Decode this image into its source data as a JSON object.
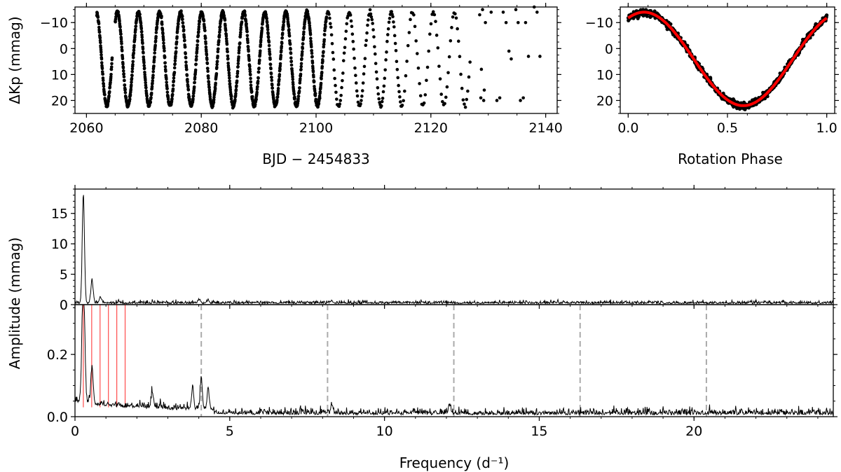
{
  "chart_data": [
    {
      "type": "scatter",
      "panel": "light-curve",
      "xlabel": "BJD − 2454833",
      "ylabel": "ΔKp (mmag)",
      "xlim": [
        2058,
        2142
      ],
      "ylim": [
        25,
        -16
      ],
      "y_inverted": true,
      "xticks": [
        2060,
        2080,
        2100,
        2120,
        2140
      ],
      "xtick_labels": [
        "2060",
        "2080",
        "2100",
        "2120",
        "2140"
      ],
      "yticks": [
        -10,
        0,
        10,
        20
      ],
      "ytick_labels": [
        "−10",
        "0",
        "10",
        "20"
      ],
      "series": [
        {
          "color": "#000000",
          "model": {
            "period_days": 3.67,
            "min_time": 2063.55,
            "amplitude_mmag": 18,
            "offset_mmag": 4,
            "time_range": [
              2061.8,
              2139.0
            ],
            "gap": [
              2064.5,
              2065.0
            ],
            "dense_until": 2101.8,
            "sparse_after": 2127.0,
            "sparse_points": [
              [
                2128.5,
                -13
              ],
              [
                2129.0,
                -15
              ],
              [
                2129.5,
                -10
              ],
              [
                2128.8,
                8
              ],
              [
                2129.3,
                16
              ],
              [
                2128.7,
                19
              ],
              [
                2129.2,
                20
              ],
              [
                2131.5,
                20
              ],
              [
                2132.0,
                19
              ],
              [
                2132.6,
                -14
              ],
              [
                2133.1,
                -10
              ],
              [
                2133.6,
                1
              ],
              [
                2134.0,
                4
              ],
              [
                2134.8,
                -15
              ],
              [
                2135.2,
                -10
              ],
              [
                2135.6,
                20
              ],
              [
                2136.1,
                19
              ],
              [
                2136.5,
                -10
              ],
              [
                2137.0,
                3
              ],
              [
                2138.0,
                -16
              ],
              [
                2138.5,
                -14
              ],
              [
                2139.0,
                3
              ],
              [
                2130.5,
                -14
              ]
            ]
          }
        }
      ]
    },
    {
      "type": "scatter",
      "panel": "phased",
      "xlabel": "Rotation Phase",
      "ylabel": "",
      "xlim": [
        -0.04,
        1.04
      ],
      "ylim": [
        25,
        -16
      ],
      "y_inverted": true,
      "xticks": [
        0.0,
        0.5,
        1.0
      ],
      "xtick_labels": [
        "0.0",
        "0.5",
        "1.0"
      ],
      "yticks": [
        -10,
        0,
        10,
        20
      ],
      "ytick_labels": [
        "−10",
        "0",
        "10",
        "20"
      ],
      "series": [
        {
          "style": "points",
          "color": "#000000",
          "phase_of_minimum": 0.58,
          "min_mmag": 22,
          "max_mmag": -14
        },
        {
          "style": "line",
          "color": "#ff0000",
          "phase_of_minimum": 0.58,
          "min_mmag": 22,
          "max_mmag": -14
        }
      ]
    },
    {
      "type": "line",
      "panel": "amplitude-spectrum",
      "xlabel": "",
      "ylabel": "Amplitude (mmag)",
      "xlim": [
        0,
        24.5
      ],
      "ylim": [
        0,
        19
      ],
      "xticks": [
        0,
        5,
        10,
        15,
        20
      ],
      "yticks": [
        0,
        5,
        10,
        15
      ],
      "ytick_labels": [
        "0",
        "5",
        "10",
        "15"
      ],
      "series": [
        {
          "color": "#000000",
          "peaks": [
            [
              0.27,
              18.0
            ],
            [
              0.55,
              3.8
            ],
            [
              0.82,
              1.0
            ],
            [
              4.0,
              0.6
            ],
            [
              4.3,
              0.5
            ],
            [
              8.3,
              0.35
            ]
          ],
          "noise_level": 0.3
        }
      ]
    },
    {
      "type": "line",
      "panel": "residual-spectrum",
      "xlabel": "Frequency (d⁻¹)",
      "ylabel": "",
      "xlim": [
        0,
        24.5
      ],
      "ylim": [
        0,
        0.36
      ],
      "xticks": [
        0,
        5,
        10,
        15,
        20
      ],
      "xtick_labels": [
        "0",
        "5",
        "10",
        "15",
        "20"
      ],
      "yticks": [
        0.0,
        0.2
      ],
      "ytick_labels": [
        "0.0",
        "0.2"
      ],
      "series": [
        {
          "color": "#000000",
          "peaks": [
            [
              0.25,
              0.29
            ],
            [
              0.3,
              0.2
            ],
            [
              0.55,
              0.12
            ],
            [
              3.8,
              0.07
            ],
            [
              4.08,
              0.1
            ],
            [
              4.3,
              0.06
            ],
            [
              2.5,
              0.05
            ],
            [
              8.3,
              0.03
            ],
            [
              12.1,
              0.03
            ]
          ],
          "noise_level": 0.012
        }
      ],
      "red_lines_x": [
        0.27,
        0.54,
        0.81,
        1.08,
        1.35,
        1.62
      ],
      "red_line_color": "#ff0000",
      "dashed_lines_x": [
        4.08,
        8.16,
        12.24,
        16.32,
        20.4
      ],
      "dashed_line_color": "#aaaaaa",
      "ylabel_spans_both_panels": true
    }
  ]
}
